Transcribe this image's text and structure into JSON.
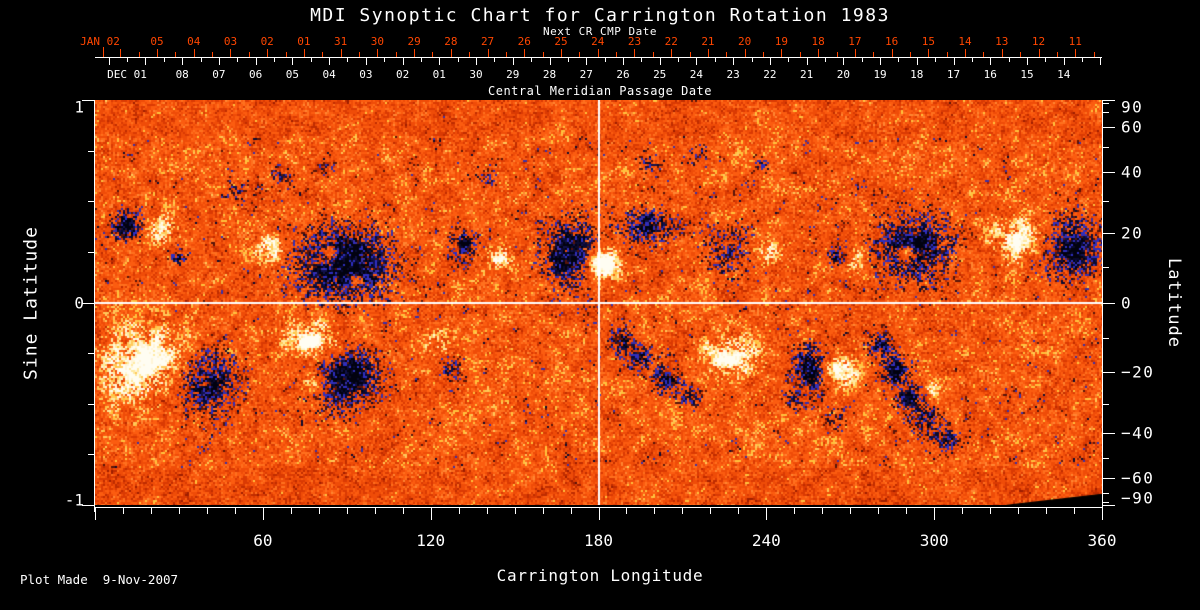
{
  "colors": {
    "background": "#000000",
    "foreground": "#ffffff",
    "accent_orange": "#ff4600"
  },
  "header": {
    "title": "MDI Synoptic Chart for Carrington Rotation 1983",
    "next_cr_label": "Next CR CMP Date",
    "cmp_label": "Central Meridian Passage Date"
  },
  "top_axis": {
    "edge_label": "JAN 02",
    "days": [
      "05",
      "04",
      "03",
      "02",
      "01",
      "31",
      "30",
      "29",
      "28",
      "27",
      "26",
      "25",
      "24",
      "23",
      "22",
      "21",
      "20",
      "19",
      "18",
      "17",
      "16",
      "15",
      "14",
      "13",
      "12",
      "11"
    ]
  },
  "cmp_axis": {
    "edge_label": "DEC 01",
    "days": [
      "08",
      "07",
      "06",
      "05",
      "04",
      "03",
      "02",
      "01",
      "30",
      "29",
      "28",
      "27",
      "26",
      "25",
      "24",
      "23",
      "22",
      "21",
      "20",
      "19",
      "18",
      "17",
      "16",
      "15",
      "14"
    ]
  },
  "x_axis": {
    "title": "Carrington Longitude",
    "majors": [
      60,
      120,
      180,
      240,
      300,
      360
    ],
    "minor_step": 10,
    "range": [
      0,
      360
    ]
  },
  "left_axis": {
    "title": "Sine Latitude",
    "majors": [
      1,
      0,
      -1
    ],
    "minors": [
      0.75,
      0.5,
      0.25,
      -0.25,
      -0.5,
      -0.75
    ],
    "range": [
      -1,
      1
    ]
  },
  "right_axis": {
    "title": "Latitude",
    "majors": [
      90,
      60,
      40,
      20,
      0,
      -20,
      -40,
      -60,
      -90
    ],
    "minors": [
      80,
      70,
      50,
      30,
      10,
      -10,
      -30,
      -50,
      -70,
      -80
    ]
  },
  "footer": {
    "plot_made": "Plot Made  9-Nov-2007"
  },
  "chart_data": {
    "type": "heatmap",
    "title": "MDI Synoptic Chart for Carrington Rotation 1983",
    "xlabel": "Carrington Longitude",
    "ylabel": "Sine Latitude",
    "ylabel_right": "Latitude",
    "xlim": [
      0,
      360
    ],
    "ylim": [
      -1,
      1
    ],
    "description": "MDI photospheric magnetic field synoptic map: orange speckle quiet-sun background, white/cream = positive polarity flux, dark navy/blue-black = negative polarity flux; white crosshair lines at longitude 180 and sine-latitude 0; activity concentrated in two bands near sine latitude +0.3 and -0.3.",
    "crosshair": {
      "lon": 180,
      "sine_lat": 0
    },
    "noise_seed": 1983,
    "palette": {
      "background_ramp": [
        "#9e1e00",
        "#bf2c00",
        "#da3a03",
        "#ef4c08",
        "#fb5c10",
        "#ff701e",
        "#ff8632",
        "#ffc33e"
      ],
      "positive": [
        "#ffc95a",
        "#ffe9a0",
        "#fff6d8",
        "#fffdf2"
      ],
      "negative": [
        "#57150a",
        "#3a30a8",
        "#11114a",
        "#2e2ec0",
        "#0a0a30",
        "#020210"
      ],
      "crosshair": "#ffffff"
    },
    "active_region_fields": [
      "lon_deg",
      "sine_lat",
      "r_lon_deg",
      "r_sine_lat",
      "amplitude"
    ],
    "active_regions": [
      [
        11.5,
        0.38,
        5,
        0.07,
        -1.2
      ],
      [
        24,
        0.36,
        4.3,
        0.06,
        1.0
      ],
      [
        30,
        0.23,
        2.9,
        0.04,
        -0.8
      ],
      [
        62.5,
        0.26,
        5,
        0.07,
        1.0
      ],
      [
        89,
        0.19,
        16,
        0.17,
        -1.3
      ],
      [
        84,
        0.24,
        2.9,
        0.04,
        1.1
      ],
      [
        93,
        0.11,
        2.5,
        0.035,
        0.9
      ],
      [
        132,
        0.28,
        5,
        0.07,
        -1.0
      ],
      [
        145,
        0.22,
        4.3,
        0.06,
        0.9
      ],
      [
        170,
        0.24,
        8.9,
        0.15,
        -1.2
      ],
      [
        182,
        0.19,
        5.7,
        0.08,
        1.5
      ],
      [
        198,
        0.38,
        10.7,
        0.075,
        -1.0
      ],
      [
        227,
        0.26,
        8.9,
        0.12,
        -0.6
      ],
      [
        240,
        0.25,
        4.3,
        0.06,
        0.9
      ],
      [
        266,
        0.23,
        3.6,
        0.05,
        -0.9
      ],
      [
        272,
        0.2,
        3.6,
        0.05,
        1.0
      ],
      [
        293,
        0.27,
        12.5,
        0.15,
        -1.2
      ],
      [
        290,
        0.24,
        3.2,
        0.045,
        1.2
      ],
      [
        329,
        0.31,
        10,
        0.1,
        1.0
      ],
      [
        349,
        0.27,
        10,
        0.14,
        -1.2
      ],
      [
        20,
        -0.31,
        16,
        0.17,
        1.4
      ],
      [
        37.5,
        -0.38,
        12.5,
        0.15,
        -1.3
      ],
      [
        78.5,
        -0.19,
        10,
        0.09,
        1.3
      ],
      [
        89,
        -0.37,
        11.4,
        0.14,
        -1.3
      ],
      [
        78.5,
        -0.39,
        3.6,
        0.05,
        1.0
      ],
      [
        123,
        -0.2,
        4.3,
        0.06,
        0.8
      ],
      [
        127,
        -0.32,
        4.3,
        0.06,
        -0.6
      ],
      [
        188,
        -0.19,
        4.3,
        0.06,
        -0.9
      ],
      [
        195,
        -0.27,
        4.3,
        0.06,
        -0.9
      ],
      [
        204,
        -0.38,
        5,
        0.07,
        -1.0
      ],
      [
        213,
        -0.46,
        4.3,
        0.06,
        -0.8
      ],
      [
        227,
        -0.26,
        8.9,
        0.09,
        1.2
      ],
      [
        256,
        -0.33,
        6.4,
        0.11,
        -1.1
      ],
      [
        266,
        -0.34,
        5.4,
        0.07,
        1.3
      ],
      [
        281,
        -0.21,
        4.3,
        0.06,
        -1.0
      ],
      [
        286,
        -0.33,
        4.6,
        0.065,
        -1.1
      ],
      [
        291,
        -0.46,
        4.6,
        0.065,
        -1.1
      ],
      [
        297,
        -0.58,
        4.6,
        0.065,
        -1.0
      ],
      [
        304,
        -0.68,
        4.3,
        0.06,
        -0.9
      ],
      [
        299,
        -0.43,
        2.5,
        0.035,
        0.8
      ],
      [
        250,
        -0.48,
        3.6,
        0.05,
        -0.5
      ],
      [
        265,
        -0.58,
        3.6,
        0.05,
        -0.5
      ],
      [
        198,
        0.68,
        4.3,
        0.05,
        -0.5
      ],
      [
        216,
        0.73,
        3.6,
        0.05,
        -0.45
      ],
      [
        238,
        0.68,
        3.6,
        0.05,
        -0.45
      ],
      [
        50,
        0.55,
        4,
        0.05,
        -0.45
      ],
      [
        66,
        0.62,
        4,
        0.05,
        -0.5
      ],
      [
        83,
        0.66,
        3.5,
        0.045,
        -0.4
      ],
      [
        140,
        0.62,
        4,
        0.05,
        -0.4
      ]
    ],
    "data_gap": {
      "note": "black wedge, no data near south pole approaching 360 deg",
      "polygon_lon_slat": [
        [
          325,
          -1
        ],
        [
          360,
          -0.945
        ],
        [
          360,
          -1
        ]
      ]
    }
  }
}
